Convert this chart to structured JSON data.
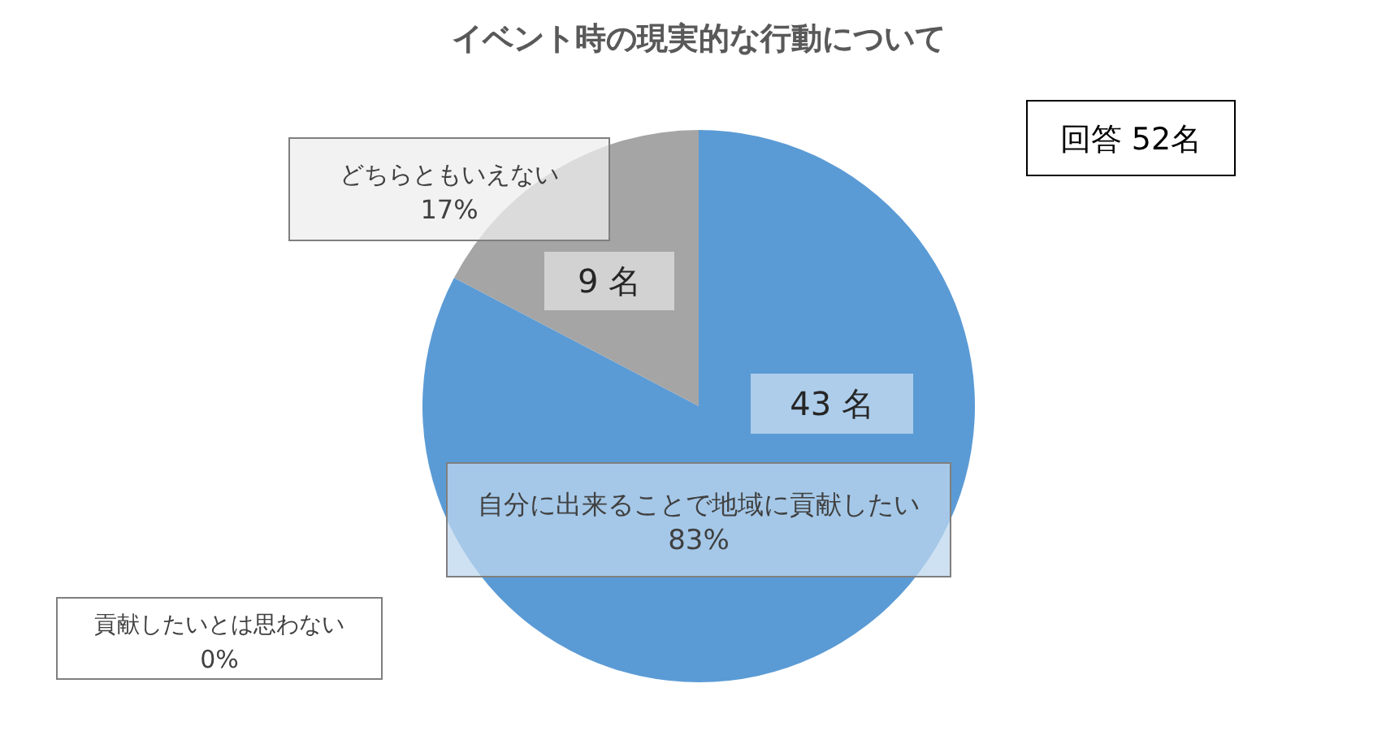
{
  "chart_data": {
    "type": "pie",
    "title": "イベント時の現実的な行動について",
    "categories": [
      "自分に出来ることで地域に貢献したい",
      "どちらともいえない",
      "貢献したいとは思わない"
    ],
    "values": [
      43,
      9,
      0
    ],
    "colors": [
      "#5b9bd5",
      "#a5a5a5",
      null
    ],
    "value_labels": [
      "43 名",
      "9 名",
      null
    ],
    "annotations": [
      "83%",
      "17%",
      "0%",
      "回答 52名"
    ],
    "legend": false
  }
}
